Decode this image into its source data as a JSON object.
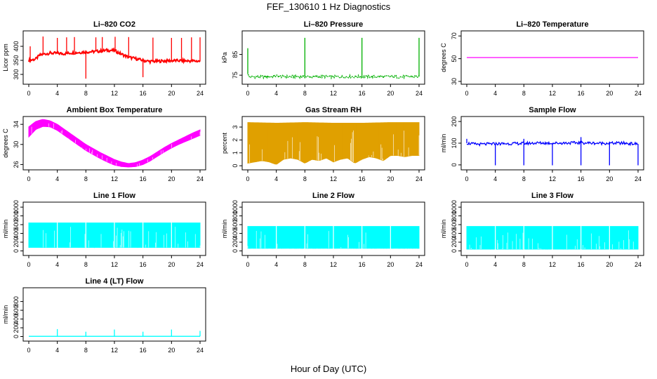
{
  "figure": {
    "title": "FEF_130610  1 Hz Diagnostics",
    "xlabel": "Hour of Day (UTC)"
  },
  "chart_data": [
    {
      "type": "line",
      "title": "Li–820 CO2",
      "xlabel": "",
      "ylabel": "Licor ppm",
      "xlim": [
        0,
        24
      ],
      "ylim": [
        275,
        445
      ],
      "xticks": [
        0,
        4,
        8,
        12,
        16,
        20,
        24
      ],
      "yticks": [
        300,
        350,
        400
      ],
      "color": "#ff0000",
      "grid": false,
      "series": [
        {
          "x": [
            0,
            0.5,
            1,
            1.5,
            2,
            3,
            4,
            5,
            6,
            7,
            8,
            9,
            10,
            11,
            12,
            13,
            14,
            15,
            16,
            17,
            18,
            19,
            20,
            21,
            22,
            23,
            24
          ],
          "values": [
            350,
            352,
            355,
            368,
            372,
            376,
            375,
            374,
            377,
            378,
            380,
            381,
            383,
            386,
            385,
            372,
            361,
            356,
            350,
            346,
            347,
            348,
            349,
            349,
            348,
            348,
            347
          ]
        }
      ],
      "spikes": [
        {
          "x": 0.2,
          "value": 400
        },
        {
          "x": 2.0,
          "value": 435
        },
        {
          "x": 4.0,
          "value": 430
        },
        {
          "x": 5.3,
          "value": 432
        },
        {
          "x": 6.4,
          "value": 433
        },
        {
          "x": 8.0,
          "value": 285
        },
        {
          "x": 9.4,
          "value": 432
        },
        {
          "x": 10.3,
          "value": 433
        },
        {
          "x": 12.1,
          "value": 434
        },
        {
          "x": 14.0,
          "value": 433
        },
        {
          "x": 16.0,
          "value": 290
        },
        {
          "x": 17.4,
          "value": 431
        },
        {
          "x": 20.0,
          "value": 430
        },
        {
          "x": 21.4,
          "value": 430
        },
        {
          "x": 22.8,
          "value": 432
        },
        {
          "x": 24.0,
          "value": 432
        }
      ]
    },
    {
      "type": "line",
      "title": "Li–820 Pressure",
      "xlabel": "",
      "ylabel": "kPa",
      "xlim": [
        0,
        24
      ],
      "ylim": [
        72,
        95
      ],
      "xticks": [
        0,
        4,
        8,
        12,
        16,
        20,
        24
      ],
      "yticks": [
        75,
        85
      ],
      "color": "#00b000",
      "grid": false,
      "series": [
        {
          "x": [
            0,
            0.2,
            1,
            2,
            3,
            4,
            5,
            6,
            7,
            8,
            9,
            10,
            11,
            12,
            13,
            14,
            15,
            16,
            17,
            18,
            19,
            20,
            21,
            22,
            23,
            24
          ],
          "values": [
            75.5,
            74.2,
            74.2,
            74.2,
            74.3,
            74.6,
            74.3,
            74.3,
            74.3,
            74.3,
            74.2,
            74.3,
            74.3,
            74.2,
            74.2,
            74.3,
            74.3,
            74.3,
            74.3,
            74.3,
            74.3,
            74.3,
            74.2,
            74.2,
            74.3,
            74.3
          ]
        }
      ],
      "spikes": [
        {
          "x": 0.0,
          "value": 88
        },
        {
          "x": 8.0,
          "value": 93
        },
        {
          "x": 16.0,
          "value": 93
        },
        {
          "x": 24.0,
          "value": 93
        }
      ]
    },
    {
      "type": "line",
      "title": "Li–820 Temperature",
      "xlabel": "",
      "ylabel": "degrees C",
      "xlim": [
        0,
        24
      ],
      "ylim": [
        30,
        72
      ],
      "xticks": [
        0,
        4,
        8,
        12,
        16,
        20,
        24
      ],
      "yticks": [
        30,
        50,
        70
      ],
      "color": "#ff00ff",
      "grid": false,
      "series": [
        {
          "x": [
            0,
            24
          ],
          "values": [
            51,
            51
          ]
        }
      ]
    },
    {
      "type": "area",
      "title": "Ambient Box Temperature",
      "xlabel": "",
      "ylabel": "degrees C",
      "xlim": [
        0,
        24
      ],
      "ylim": [
        25.5,
        35
      ],
      "xticks": [
        0,
        4,
        8,
        12,
        16,
        20,
        24
      ],
      "yticks": [
        26,
        30,
        34
      ],
      "color": "#ff00ff",
      "grid": false,
      "series": [
        {
          "x": [
            0,
            1,
            2,
            3,
            4,
            5,
            6,
            7,
            8,
            9,
            10,
            11,
            12,
            13,
            14,
            15,
            16,
            17,
            18,
            19,
            20,
            21,
            22,
            23,
            24
          ],
          "values": [
            33.5,
            34.6,
            35.0,
            34.7,
            34.0,
            33.0,
            32.0,
            31.0,
            30.0,
            29.2,
            28.4,
            27.7,
            27.0,
            26.5,
            26.2,
            26.4,
            26.9,
            27.6,
            28.5,
            29.4,
            30.2,
            30.9,
            31.6,
            32.3,
            32.9
          ]
        },
        {
          "x": [
            0,
            1,
            2,
            3,
            4,
            5,
            6,
            7,
            8,
            9,
            10,
            11,
            12,
            13,
            14,
            15,
            16,
            17,
            18,
            19,
            20,
            21,
            22,
            23,
            24
          ],
          "values": [
            31.5,
            33.0,
            33.6,
            33.5,
            32.8,
            31.8,
            30.8,
            29.8,
            28.8,
            28.0,
            27.2,
            26.5,
            25.9,
            25.6,
            25.5,
            25.6,
            26.0,
            26.7,
            27.6,
            28.5,
            29.3,
            30.0,
            30.6,
            31.2,
            31.8
          ]
        }
      ]
    },
    {
      "type": "area",
      "title": "Gas Stream RH",
      "xlabel": "",
      "ylabel": "percent",
      "xlim": [
        0,
        24
      ],
      "ylim": [
        -0.1,
        3.6
      ],
      "xticks": [
        0,
        4,
        8,
        12,
        16,
        20,
        24
      ],
      "yticks": [
        0,
        1,
        2,
        3
      ],
      "color": "#e0a000",
      "grid": false,
      "series": [
        {
          "x": [
            0,
            4,
            8,
            12,
            16,
            20,
            24
          ],
          "values": [
            3.35,
            3.3,
            3.35,
            3.3,
            3.3,
            3.35,
            3.35
          ]
        },
        {
          "x": [
            0,
            1,
            2,
            3,
            4,
            5,
            6,
            7,
            8,
            9,
            10,
            11,
            12,
            13,
            14,
            15,
            16,
            17,
            18,
            19,
            20,
            21,
            22,
            23,
            24
          ],
          "values": [
            0.2,
            0.3,
            0.4,
            0.3,
            0.1,
            0.5,
            0.6,
            0.5,
            0.2,
            0.5,
            0.4,
            0.6,
            0.3,
            0.5,
            0.6,
            0.2,
            0.5,
            0.7,
            0.6,
            0.4,
            0.8,
            0.8,
            0.7,
            0.8,
            0.8
          ]
        }
      ]
    },
    {
      "type": "line",
      "title": "Sample Flow",
      "xlabel": "",
      "ylabel": "ml/min",
      "xlim": [
        0,
        24
      ],
      "ylim": [
        -10,
        210
      ],
      "xticks": [
        0,
        4,
        8,
        12,
        16,
        20,
        24
      ],
      "yticks": [
        0,
        100,
        200
      ],
      "color": "#0000ff",
      "grid": false,
      "series": [
        {
          "x": [
            0,
            1,
            2,
            4,
            6,
            8,
            10,
            12,
            14,
            16,
            18,
            20,
            22,
            24
          ],
          "values": [
            100,
            96,
            95,
            97,
            98,
            99,
            101,
            100,
            101,
            102,
            100,
            100,
            100,
            96
          ]
        }
      ],
      "spikes": [
        {
          "x": 0.0,
          "value": 120
        },
        {
          "x": 4.0,
          "value": -2
        },
        {
          "x": 8.0,
          "value": -2
        },
        {
          "x": 8.0,
          "value": 120
        },
        {
          "x": 12.0,
          "value": -2
        },
        {
          "x": 16.0,
          "value": -2
        },
        {
          "x": 16.0,
          "value": 128
        },
        {
          "x": 20.0,
          "value": -2
        },
        {
          "x": 24.0,
          "value": -2
        }
      ]
    },
    {
      "type": "area",
      "title": "Line 1 Flow",
      "xlabel": "",
      "ylabel": "ml/min",
      "xlim": [
        0,
        24
      ],
      "ylim": [
        -40,
        1050
      ],
      "xticks": [
        0,
        4,
        8,
        12,
        16,
        20,
        24
      ],
      "yticks": [
        0,
        200,
        400,
        600,
        800,
        1000
      ],
      "color": "#00ffff",
      "grid": false,
      "series": [
        {
          "x": [
            0,
            4,
            8,
            12,
            16,
            20,
            24
          ],
          "values": [
            640,
            640,
            640,
            640,
            640,
            640,
            640
          ]
        },
        {
          "x": [
            0,
            4,
            8,
            12,
            16,
            20,
            24
          ],
          "values": [
            80,
            80,
            80,
            80,
            80,
            80,
            80
          ]
        }
      ],
      "gaps": [
        4,
        8,
        12,
        16,
        20
      ]
    },
    {
      "type": "area",
      "title": "Line 2 Flow",
      "xlabel": "",
      "ylabel": "ml/min",
      "xlim": [
        0,
        24
      ],
      "ylim": [
        -40,
        1050
      ],
      "xticks": [
        0,
        4,
        8,
        12,
        16,
        20,
        24
      ],
      "yticks": [
        0,
        200,
        400,
        600,
        800,
        1000
      ],
      "color": "#00ffff",
      "grid": false,
      "series": [
        {
          "x": [
            0,
            4,
            8,
            12,
            16,
            20,
            24
          ],
          "values": [
            560,
            560,
            560,
            560,
            560,
            560,
            560
          ]
        },
        {
          "x": [
            0,
            4,
            8,
            12,
            16,
            20,
            24
          ],
          "values": [
            60,
            60,
            60,
            60,
            60,
            60,
            60
          ]
        }
      ],
      "gaps": [
        4,
        8,
        12,
        16,
        20
      ]
    },
    {
      "type": "area",
      "title": "Line 3 Flow",
      "xlabel": "",
      "ylabel": "ml/min",
      "xlim": [
        0,
        24
      ],
      "ylim": [
        -40,
        1050
      ],
      "xticks": [
        0,
        4,
        8,
        12,
        16,
        20,
        24
      ],
      "yticks": [
        0,
        200,
        400,
        600,
        800,
        1000
      ],
      "color": "#00ffff",
      "grid": false,
      "series": [
        {
          "x": [
            0,
            4,
            8,
            12,
            16,
            20,
            24
          ],
          "values": [
            560,
            560,
            560,
            560,
            560,
            560,
            560
          ]
        },
        {
          "x": [
            0,
            4,
            8,
            12,
            16,
            20,
            24
          ],
          "values": [
            40,
            40,
            40,
            40,
            40,
            40,
            40
          ]
        }
      ],
      "gaps": [
        4,
        8,
        12,
        16,
        20
      ]
    },
    {
      "type": "line",
      "title": "Line 4 (LT) Flow",
      "xlabel": "",
      "ylabel": "ml/min",
      "xlim": [
        0,
        24
      ],
      "ylim": [
        -40,
        1050
      ],
      "xticks": [
        0,
        4,
        8,
        12,
        16,
        20,
        24
      ],
      "yticks": [
        0,
        200,
        400,
        600,
        800
      ],
      "color": "#00ffff",
      "grid": false,
      "series": [
        {
          "x": [
            0,
            24
          ],
          "values": [
            5,
            5
          ]
        }
      ],
      "spikes": [
        {
          "x": 4.0,
          "value": 170
        },
        {
          "x": 8.0,
          "value": 110
        },
        {
          "x": 12.0,
          "value": 160
        },
        {
          "x": 16.0,
          "value": 110
        },
        {
          "x": 20.0,
          "value": 160
        },
        {
          "x": 24.0,
          "value": 130
        }
      ]
    }
  ]
}
